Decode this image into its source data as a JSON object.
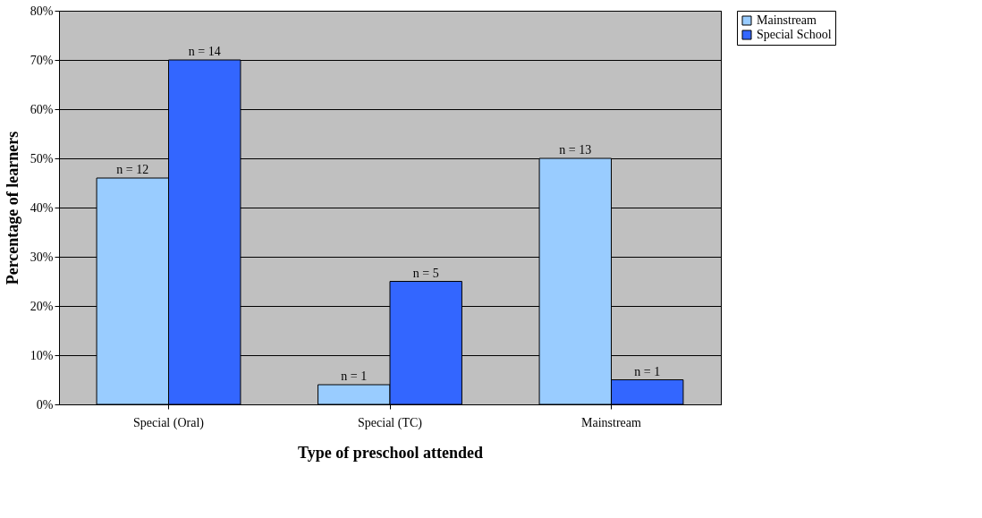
{
  "chart_data": {
    "type": "bar",
    "xlabel": "Type of preschool attended",
    "ylabel": "Percentage of learners",
    "categories": [
      "Special (Oral)",
      "Special (TC)",
      "Mainstream"
    ],
    "series": [
      {
        "name": "Mainstream",
        "color": "#99ccff",
        "values": [
          46,
          4,
          50
        ]
      },
      {
        "name": "Special School",
        "color": "#3366ff",
        "values": [
          70,
          25,
          5
        ]
      }
    ],
    "annotations": [
      {
        "text": "n = 12",
        "x": "Special (Oral)",
        "y": 46
      },
      {
        "text": "n = 14",
        "x": "Special (Oral)",
        "y": 70
      },
      {
        "text": "n = 1",
        "x": "Special (TC)",
        "y": 4
      },
      {
        "text": "n = 5",
        "x": "Special (TC)",
        "y": 25
      },
      {
        "text": "n = 13",
        "x": "Mainstream",
        "y": 50
      },
      {
        "text": "n = 1",
        "x": "Mainstream",
        "y": 5
      }
    ],
    "ylim": [
      0,
      80
    ],
    "yticks": [
      {
        "value": 0,
        "label": "0%"
      },
      {
        "value": 10,
        "label": "10%"
      },
      {
        "value": 20,
        "label": "20%"
      },
      {
        "value": 30,
        "label": "30%"
      },
      {
        "value": 40,
        "label": "40%"
      },
      {
        "value": 50,
        "label": "50%"
      },
      {
        "value": 60,
        "label": "60%"
      },
      {
        "value": 70,
        "label": "70%"
      },
      {
        "value": 80,
        "label": "80%"
      }
    ],
    "grid": "y",
    "legend": "right"
  }
}
